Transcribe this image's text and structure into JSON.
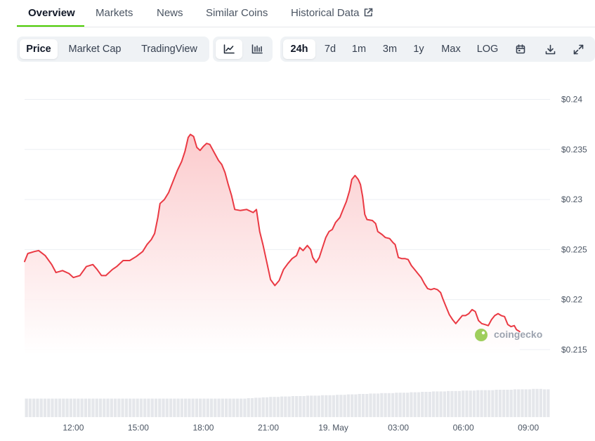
{
  "tabs": [
    {
      "label": "Overview",
      "active": true
    },
    {
      "label": "Markets"
    },
    {
      "label": "News"
    },
    {
      "label": "Similar Coins"
    },
    {
      "label": "Historical Data",
      "icon": "external-link-icon"
    }
  ],
  "toolbar": {
    "chart_modes": [
      "Price",
      "Market Cap",
      "TradingView"
    ],
    "active_mode": "Price",
    "chart_styles": [
      {
        "icon": "line-chart-icon",
        "active": true
      },
      {
        "icon": "candlestick-chart-icon"
      }
    ],
    "ranges": [
      "24h",
      "7d",
      "1m",
      "3m",
      "1y",
      "Max",
      "LOG"
    ],
    "active_range": "24h",
    "actions": [
      {
        "icon": "calendar-icon"
      },
      {
        "icon": "download-icon"
      },
      {
        "icon": "fullscreen-icon"
      }
    ]
  },
  "watermark": {
    "text": "coingecko"
  },
  "colors": {
    "line": "#ea3943",
    "area_top": "#fbc8ca",
    "accent": "#4bcc00",
    "volume": "#e5e7eb",
    "grid": "#eceff3"
  },
  "chart_data": {
    "type": "area",
    "x_tick_labels": [
      "12:00",
      "15:00",
      "18:00",
      "21:00",
      "19. May",
      "03:00",
      "06:00",
      "09:00"
    ],
    "x_tick_hours": [
      12,
      15,
      18,
      21,
      24,
      27,
      30,
      33
    ],
    "x_range_hours": [
      9.75,
      34.0
    ],
    "y_tick_labels": [
      "$0.215",
      "$0.22",
      "$0.225",
      "$0.23",
      "$0.235",
      "$0.24"
    ],
    "y_ticks": [
      0.215,
      0.22,
      0.225,
      0.23,
      0.235,
      0.24
    ],
    "ylim": [
      0.2145,
      0.2413
    ],
    "grid": true,
    "series": [
      {
        "values": [
          [
            9.75,
            0.2238
          ],
          [
            9.9,
            0.2246
          ],
          [
            10.2,
            0.2248
          ],
          [
            10.4,
            0.2249
          ],
          [
            10.7,
            0.2244
          ],
          [
            11.0,
            0.2235
          ],
          [
            11.2,
            0.2227
          ],
          [
            11.5,
            0.2229
          ],
          [
            11.8,
            0.2226
          ],
          [
            12.0,
            0.2222
          ],
          [
            12.3,
            0.2224
          ],
          [
            12.6,
            0.2233
          ],
          [
            12.9,
            0.2235
          ],
          [
            13.1,
            0.223
          ],
          [
            13.3,
            0.2224
          ],
          [
            13.5,
            0.2224
          ],
          [
            13.8,
            0.223
          ],
          [
            14.0,
            0.2233
          ],
          [
            14.3,
            0.2239
          ],
          [
            14.6,
            0.2239
          ],
          [
            14.9,
            0.2243
          ],
          [
            15.2,
            0.2248
          ],
          [
            15.4,
            0.2255
          ],
          [
            15.6,
            0.226
          ],
          [
            15.75,
            0.2266
          ],
          [
            15.9,
            0.2282
          ],
          [
            16.0,
            0.2296
          ],
          [
            16.2,
            0.23
          ],
          [
            16.4,
            0.2307
          ],
          [
            16.6,
            0.2318
          ],
          [
            16.8,
            0.2329
          ],
          [
            17.0,
            0.2338
          ],
          [
            17.15,
            0.2348
          ],
          [
            17.3,
            0.2362
          ],
          [
            17.4,
            0.2365
          ],
          [
            17.55,
            0.2363
          ],
          [
            17.7,
            0.2352
          ],
          [
            17.85,
            0.2349
          ],
          [
            18.0,
            0.2353
          ],
          [
            18.15,
            0.2356
          ],
          [
            18.3,
            0.2355
          ],
          [
            18.5,
            0.2347
          ],
          [
            18.7,
            0.2339
          ],
          [
            18.85,
            0.2335
          ],
          [
            19.0,
            0.2327
          ],
          [
            19.15,
            0.2315
          ],
          [
            19.3,
            0.2304
          ],
          [
            19.45,
            0.229
          ],
          [
            19.7,
            0.2289
          ],
          [
            20.0,
            0.229
          ],
          [
            20.3,
            0.2287
          ],
          [
            20.45,
            0.229
          ],
          [
            20.6,
            0.2268
          ],
          [
            20.75,
            0.2255
          ],
          [
            20.95,
            0.2235
          ],
          [
            21.1,
            0.222
          ],
          [
            21.3,
            0.2214
          ],
          [
            21.5,
            0.2219
          ],
          [
            21.7,
            0.223
          ],
          [
            21.9,
            0.2236
          ],
          [
            22.1,
            0.2241
          ],
          [
            22.3,
            0.2244
          ],
          [
            22.45,
            0.2252
          ],
          [
            22.6,
            0.2249
          ],
          [
            22.8,
            0.2254
          ],
          [
            22.95,
            0.225
          ],
          [
            23.05,
            0.2242
          ],
          [
            23.2,
            0.2237
          ],
          [
            23.35,
            0.2242
          ],
          [
            23.5,
            0.2252
          ],
          [
            23.65,
            0.2262
          ],
          [
            23.8,
            0.2268
          ],
          [
            23.95,
            0.227
          ],
          [
            24.1,
            0.2277
          ],
          [
            24.3,
            0.2282
          ],
          [
            24.45,
            0.229
          ],
          [
            24.6,
            0.2298
          ],
          [
            24.75,
            0.2309
          ],
          [
            24.85,
            0.232
          ],
          [
            25.0,
            0.2324
          ],
          [
            25.15,
            0.232
          ],
          [
            25.25,
            0.2315
          ],
          [
            25.35,
            0.2303
          ],
          [
            25.45,
            0.2285
          ],
          [
            25.55,
            0.228
          ],
          [
            25.8,
            0.2279
          ],
          [
            25.95,
            0.2276
          ],
          [
            26.05,
            0.2268
          ],
          [
            26.25,
            0.2265
          ],
          [
            26.4,
            0.2262
          ],
          [
            26.6,
            0.2261
          ],
          [
            26.75,
            0.2257
          ],
          [
            26.85,
            0.2255
          ],
          [
            27.0,
            0.2242
          ],
          [
            27.15,
            0.2241
          ],
          [
            27.3,
            0.2241
          ],
          [
            27.45,
            0.224
          ],
          [
            27.6,
            0.2234
          ],
          [
            27.75,
            0.223
          ],
          [
            27.9,
            0.2226
          ],
          [
            28.05,
            0.2222
          ],
          [
            28.2,
            0.2216
          ],
          [
            28.35,
            0.2211
          ],
          [
            28.5,
            0.221
          ],
          [
            28.65,
            0.2211
          ],
          [
            28.8,
            0.221
          ],
          [
            28.95,
            0.2207
          ],
          [
            29.05,
            0.2201
          ],
          [
            29.2,
            0.2193
          ],
          [
            29.35,
            0.2185
          ],
          [
            29.5,
            0.218
          ],
          [
            29.65,
            0.2176
          ],
          [
            29.8,
            0.218
          ],
          [
            29.95,
            0.2184
          ],
          [
            30.1,
            0.2184
          ],
          [
            30.25,
            0.2186
          ],
          [
            30.4,
            0.219
          ],
          [
            30.55,
            0.2188
          ],
          [
            30.7,
            0.2179
          ],
          [
            30.85,
            0.2176
          ],
          [
            31.0,
            0.2175
          ],
          [
            31.15,
            0.2174
          ],
          [
            31.3,
            0.218
          ],
          [
            31.45,
            0.2184
          ],
          [
            31.6,
            0.2186
          ],
          [
            31.75,
            0.2184
          ],
          [
            31.9,
            0.2183
          ],
          [
            32.05,
            0.2175
          ],
          [
            32.2,
            0.2173
          ],
          [
            32.35,
            0.2174
          ],
          [
            32.45,
            0.217
          ],
          [
            32.6,
            0.2168
          ]
        ]
      }
    ],
    "volume_note": "volume bars shown beneath price line, unlabeled",
    "volume_relative": [
      0.44,
      0.44,
      0.44,
      0.44,
      0.44,
      0.44,
      0.44,
      0.44,
      0.44,
      0.44,
      0.44,
      0.44,
      0.44,
      0.44,
      0.44,
      0.44,
      0.44,
      0.44,
      0.44,
      0.44,
      0.44,
      0.44,
      0.44,
      0.44,
      0.44,
      0.44,
      0.44,
      0.44,
      0.44,
      0.44,
      0.44,
      0.44,
      0.44,
      0.44,
      0.44,
      0.44,
      0.44,
      0.44,
      0.44,
      0.44,
      0.44,
      0.44,
      0.44,
      0.44,
      0.44,
      0.44,
      0.44,
      0.44,
      0.44,
      0.44,
      0.44,
      0.44,
      0.44,
      0.44,
      0.44,
      0.44,
      0.44,
      0.44,
      0.44,
      0.44,
      0.45,
      0.45,
      0.46,
      0.46,
      0.47,
      0.47,
      0.48,
      0.48,
      0.48,
      0.49,
      0.49,
      0.49,
      0.5,
      0.5,
      0.5,
      0.5,
      0.51,
      0.51,
      0.51,
      0.51,
      0.52,
      0.52,
      0.52,
      0.52,
      0.53,
      0.53,
      0.53,
      0.54,
      0.54,
      0.54,
      0.55,
      0.55,
      0.55,
      0.56,
      0.56,
      0.56,
      0.57,
      0.57,
      0.57,
      0.57,
      0.58,
      0.58,
      0.58,
      0.58,
      0.59,
      0.59,
      0.59,
      0.6,
      0.6,
      0.6,
      0.61,
      0.61,
      0.61,
      0.61,
      0.62,
      0.62,
      0.62,
      0.62,
      0.63,
      0.63,
      0.63,
      0.63,
      0.64,
      0.64,
      0.64,
      0.64,
      0.64,
      0.65,
      0.65,
      0.65,
      0.65,
      0.65,
      0.66,
      0.66,
      0.66,
      0.66,
      0.66,
      0.67,
      0.67,
      0.67,
      0.66,
      0.66
    ]
  }
}
